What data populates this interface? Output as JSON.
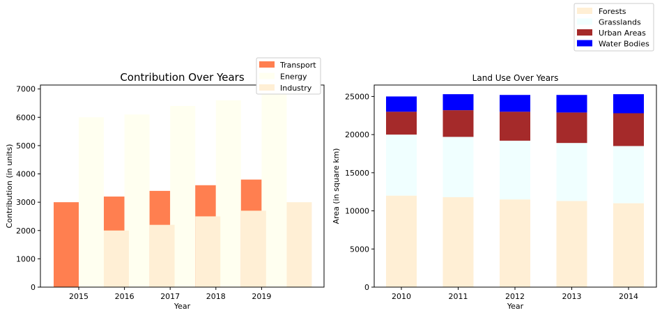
{
  "chart_data": [
    {
      "type": "bar",
      "title": "Contribution Over Years",
      "xlabel": "Year",
      "ylabel": "Contribution (in units)",
      "categories": [
        "2015",
        "2016",
        "2017",
        "2018",
        "2019"
      ],
      "ylim": [
        0,
        7140
      ],
      "yticks": [
        0,
        1000,
        2000,
        3000,
        4000,
        5000,
        6000,
        7000
      ],
      "legend_position": "top-right",
      "series": [
        {
          "name": "Transport",
          "color": "#ff7f50",
          "values": [
            3000,
            3200,
            3400,
            3600,
            3800
          ]
        },
        {
          "name": "Energy",
          "color": "#fffff0",
          "values": [
            6000,
            6100,
            6400,
            6600,
            6900
          ]
        },
        {
          "name": "Industry",
          "color": "#ffefd5",
          "values": [
            2000,
            2200,
            2500,
            2700,
            3000
          ]
        }
      ]
    },
    {
      "type": "bar",
      "stacked": true,
      "title": "Land Use Over Years",
      "xlabel": "Year",
      "ylabel": "Area (in square km)",
      "categories": [
        "2010",
        "2011",
        "2012",
        "2013",
        "2014"
      ],
      "ylim": [
        0,
        26500
      ],
      "yticks": [
        0,
        5000,
        10000,
        15000,
        20000,
        25000
      ],
      "legend_position": "top-right",
      "series": [
        {
          "name": "Forests",
          "color": "#ffefd5",
          "values": [
            12000,
            11800,
            11500,
            11300,
            11000
          ]
        },
        {
          "name": "Grasslands",
          "color": "#f0ffff",
          "values": [
            8000,
            7900,
            7700,
            7600,
            7500
          ]
        },
        {
          "name": "Urban Areas",
          "color": "#a52a2a",
          "values": [
            3000,
            3500,
            3800,
            4000,
            4300
          ]
        },
        {
          "name": "Water Bodies",
          "color": "#0000ff",
          "values": [
            2000,
            2100,
            2200,
            2300,
            2500
          ]
        }
      ]
    }
  ]
}
